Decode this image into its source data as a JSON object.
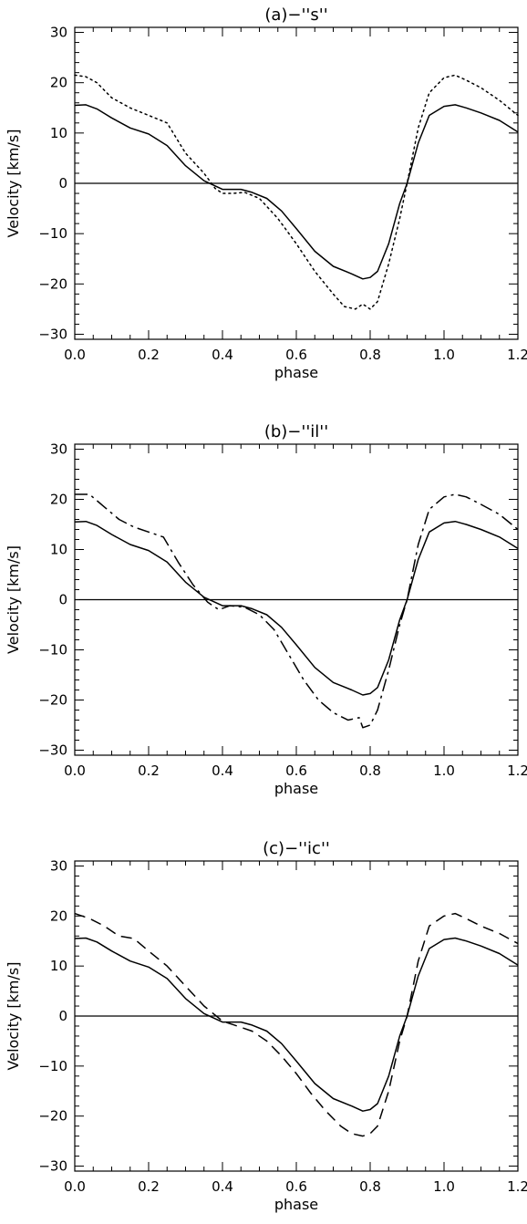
{
  "chart_data": [
    {
      "type": "line",
      "title": "(a)−''s''",
      "xlabel": "phase",
      "ylabel": "Velocity [km/s]",
      "xlim": [
        0.0,
        1.2
      ],
      "ylim": [
        -31,
        31
      ],
      "xticks": [
        "0.0",
        "0.2",
        "0.4",
        "0.6",
        "0.8",
        "1.0",
        "1.2"
      ],
      "yticks": [
        "−30",
        "−20",
        "−10",
        "0",
        "10",
        "20",
        "30"
      ],
      "grid": false,
      "reference_line": 0,
      "series": [
        {
          "style": "solid",
          "x": [
            0.0,
            0.03,
            0.06,
            0.1,
            0.15,
            0.2,
            0.25,
            0.3,
            0.35,
            0.4,
            0.45,
            0.48,
            0.52,
            0.56,
            0.6,
            0.65,
            0.7,
            0.75,
            0.78,
            0.8,
            0.82,
            0.85,
            0.88,
            0.9,
            0.93,
            0.96,
            1.0,
            1.03,
            1.06,
            1.1,
            1.15,
            1.2
          ],
          "y": [
            15.5,
            15.6,
            14.8,
            13.0,
            11.0,
            9.8,
            7.5,
            3.5,
            0.5,
            -1.2,
            -1.2,
            -1.8,
            -3.0,
            -5.5,
            -9.0,
            -13.5,
            -16.5,
            -18.0,
            -19.0,
            -18.7,
            -17.5,
            -12.0,
            -4.0,
            0.0,
            8.0,
            13.5,
            15.3,
            15.6,
            15.0,
            14.0,
            12.5,
            10.2
          ]
        },
        {
          "style": "dotted",
          "x": [
            0.0,
            0.03,
            0.06,
            0.1,
            0.15,
            0.2,
            0.25,
            0.3,
            0.35,
            0.38,
            0.4,
            0.43,
            0.46,
            0.5,
            0.55,
            0.6,
            0.65,
            0.7,
            0.73,
            0.76,
            0.78,
            0.8,
            0.82,
            0.85,
            0.88,
            0.9,
            0.93,
            0.96,
            1.0,
            1.03,
            1.06,
            1.1,
            1.15,
            1.2
          ],
          "y": [
            21.5,
            21.2,
            20.0,
            17.0,
            15.0,
            13.5,
            12.0,
            6.0,
            2.0,
            -1.0,
            -2.0,
            -2.0,
            -1.8,
            -3.0,
            -7.0,
            -12.0,
            -17.5,
            -22.0,
            -24.5,
            -25.0,
            -24.0,
            -25.0,
            -23.5,
            -16.0,
            -7.0,
            0.0,
            11.0,
            18.0,
            21.0,
            21.5,
            20.5,
            19.0,
            16.5,
            13.5
          ]
        }
      ]
    },
    {
      "type": "line",
      "title": "(b)−''il''",
      "xlabel": "phase",
      "ylabel": "Velocity [km/s]",
      "xlim": [
        0.0,
        1.2
      ],
      "ylim": [
        -31,
        31
      ],
      "xticks": [
        "0.0",
        "0.2",
        "0.4",
        "0.6",
        "0.8",
        "1.0",
        "1.2"
      ],
      "yticks": [
        "−30",
        "−20",
        "−10",
        "0",
        "10",
        "20",
        "30"
      ],
      "grid": false,
      "reference_line": 0,
      "series": [
        {
          "style": "solid",
          "x": [
            0.0,
            0.03,
            0.06,
            0.1,
            0.15,
            0.2,
            0.25,
            0.3,
            0.35,
            0.4,
            0.45,
            0.48,
            0.52,
            0.56,
            0.6,
            0.65,
            0.7,
            0.75,
            0.78,
            0.8,
            0.82,
            0.85,
            0.88,
            0.9,
            0.93,
            0.96,
            1.0,
            1.03,
            1.06,
            1.1,
            1.15,
            1.2
          ],
          "y": [
            15.5,
            15.6,
            14.8,
            13.0,
            11.0,
            9.8,
            7.5,
            3.5,
            0.5,
            -1.2,
            -1.2,
            -1.8,
            -3.0,
            -5.5,
            -9.0,
            -13.5,
            -16.5,
            -18.0,
            -19.0,
            -18.7,
            -17.5,
            -12.0,
            -4.0,
            0.0,
            8.0,
            13.5,
            15.3,
            15.6,
            15.0,
            14.0,
            12.5,
            10.2
          ]
        },
        {
          "style": "dash-dot",
          "x": [
            0.0,
            0.04,
            0.08,
            0.12,
            0.16,
            0.2,
            0.24,
            0.28,
            0.32,
            0.36,
            0.39,
            0.42,
            0.46,
            0.5,
            0.54,
            0.58,
            0.62,
            0.66,
            0.7,
            0.74,
            0.77,
            0.78,
            0.8,
            0.82,
            0.85,
            0.88,
            0.9,
            0.93,
            0.96,
            1.0,
            1.03,
            1.06,
            1.1,
            1.15,
            1.2
          ],
          "y": [
            21.0,
            21.0,
            18.5,
            16.0,
            14.5,
            13.5,
            12.5,
            7.5,
            3.0,
            -0.5,
            -2.0,
            -1.2,
            -1.5,
            -3.0,
            -6.0,
            -11.0,
            -16.0,
            -20.0,
            -22.5,
            -24.0,
            -23.5,
            -25.5,
            -25.0,
            -22.0,
            -14.0,
            -5.0,
            0.0,
            11.0,
            18.0,
            20.5,
            21.0,
            20.5,
            19.0,
            17.0,
            14.0
          ]
        }
      ]
    },
    {
      "type": "line",
      "title": "(c)−''ic''",
      "xlabel": "phase",
      "ylabel": "Velocity [km/s]",
      "xlim": [
        0.0,
        1.2
      ],
      "ylim": [
        -31,
        31
      ],
      "xticks": [
        "0.0",
        "0.2",
        "0.4",
        "0.6",
        "0.8",
        "1.0",
        "1.2"
      ],
      "yticks": [
        "−30",
        "−20",
        "−10",
        "0",
        "10",
        "20",
        "30"
      ],
      "grid": false,
      "reference_line": 0,
      "series": [
        {
          "style": "solid",
          "x": [
            0.0,
            0.03,
            0.06,
            0.1,
            0.15,
            0.2,
            0.25,
            0.3,
            0.35,
            0.4,
            0.45,
            0.48,
            0.52,
            0.56,
            0.6,
            0.65,
            0.7,
            0.75,
            0.78,
            0.8,
            0.82,
            0.85,
            0.88,
            0.9,
            0.93,
            0.96,
            1.0,
            1.03,
            1.06,
            1.1,
            1.15,
            1.2
          ],
          "y": [
            15.5,
            15.6,
            14.8,
            13.0,
            11.0,
            9.8,
            7.5,
            3.5,
            0.5,
            -1.2,
            -1.2,
            -1.8,
            -3.0,
            -5.5,
            -9.0,
            -13.5,
            -16.5,
            -18.0,
            -19.0,
            -18.7,
            -17.5,
            -12.0,
            -4.0,
            0.0,
            8.0,
            13.5,
            15.3,
            15.6,
            15.0,
            14.0,
            12.5,
            10.2
          ]
        },
        {
          "style": "dashed",
          "x": [
            0.0,
            0.04,
            0.08,
            0.12,
            0.16,
            0.2,
            0.25,
            0.3,
            0.35,
            0.4,
            0.44,
            0.48,
            0.52,
            0.56,
            0.6,
            0.64,
            0.68,
            0.72,
            0.75,
            0.78,
            0.8,
            0.82,
            0.85,
            0.88,
            0.9,
            0.93,
            0.96,
            1.0,
            1.03,
            1.06,
            1.1,
            1.15,
            1.2
          ],
          "y": [
            20.5,
            19.5,
            18.0,
            16.0,
            15.5,
            13.0,
            10.0,
            6.0,
            2.0,
            -1.0,
            -2.0,
            -3.0,
            -5.0,
            -8.0,
            -11.5,
            -15.5,
            -19.0,
            -22.0,
            -23.5,
            -24.0,
            -23.5,
            -22.0,
            -15.0,
            -5.0,
            0.0,
            11.0,
            18.0,
            20.0,
            20.5,
            19.5,
            18.0,
            16.5,
            14.5
          ]
        }
      ]
    }
  ]
}
